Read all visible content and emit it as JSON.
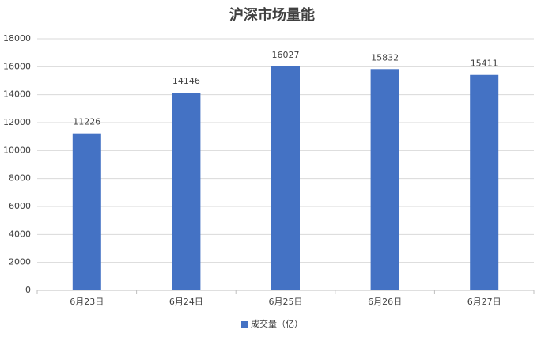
{
  "chart_data": {
    "type": "bar",
    "title": "沪深市场量能",
    "categories": [
      "6月23日",
      "6月24日",
      "6月25日",
      "6月26日",
      "6月27日"
    ],
    "series": [
      {
        "name": "成交量（亿）",
        "color": "#4472c4",
        "values": [
          11226,
          14146,
          16027,
          15832,
          15411
        ]
      }
    ],
    "ylim": [
      0,
      18000
    ],
    "yticks": [
      0,
      2000,
      4000,
      6000,
      8000,
      10000,
      12000,
      14000,
      16000,
      18000
    ],
    "grid": true,
    "legend": "bottom"
  }
}
